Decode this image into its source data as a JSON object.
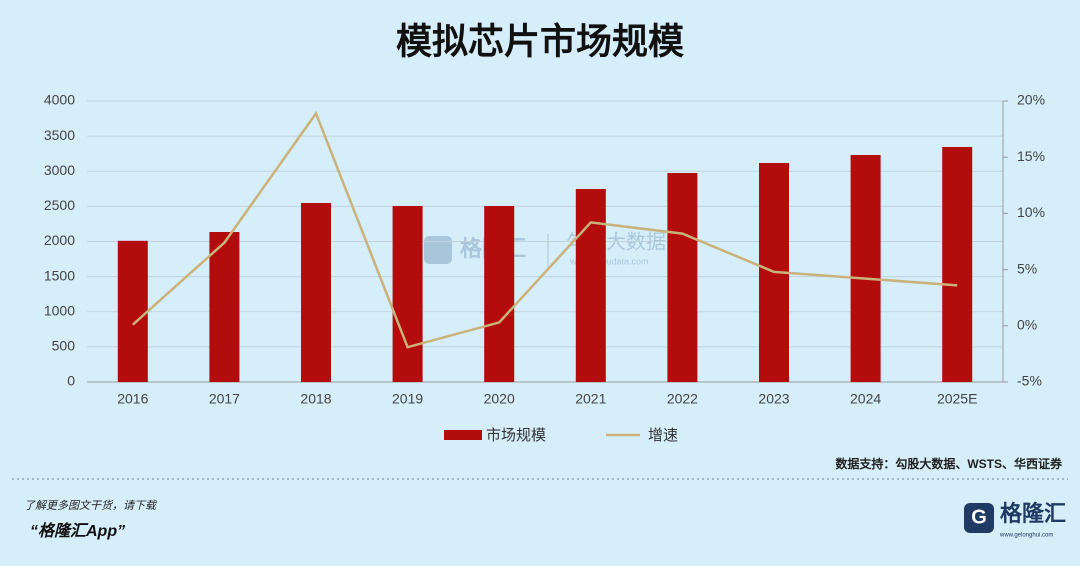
{
  "chart_data": {
    "type": "bar",
    "title": "模拟芯片市场规模",
    "categories": [
      "2016",
      "2017",
      "2018",
      "2019",
      "2020",
      "2021",
      "2022",
      "2023",
      "2024",
      "2025E"
    ],
    "series": [
      {
        "name": "市场规模",
        "type": "bar",
        "color": "#b30c0c",
        "values": [
          2010,
          2135,
          2548,
          2505,
          2505,
          2747,
          2975,
          3117,
          3231,
          3345
        ]
      },
      {
        "name": "增速",
        "type": "line",
        "axis": "y2",
        "color": "#c9b27c",
        "values": [
          0.1,
          7.4,
          18.9,
          -1.9,
          0.3,
          9.2,
          8.2,
          4.8,
          4.2,
          3.6
        ]
      }
    ],
    "ylim": [
      0,
      4000
    ],
    "yticks": [
      0,
      500,
      1000,
      1500,
      2000,
      2500,
      3000,
      3500,
      4000
    ],
    "y2lim": [
      -5,
      20
    ],
    "y2ticks": [
      {
        "value": -5,
        "label": "-5%"
      },
      {
        "value": 0,
        "label": "0%"
      },
      {
        "value": 5,
        "label": "5%"
      },
      {
        "value": 10,
        "label": "10%"
      },
      {
        "value": 15,
        "label": "15%"
      },
      {
        "value": 20,
        "label": "20%"
      }
    ],
    "grid": true,
    "legend": "bottom",
    "source": "数据支持：勾股大数据、WSTS、华西证券"
  },
  "watermark": {
    "brand": "格隆汇",
    "partner": "勾股大数据",
    "url": "www.gogudata.com"
  },
  "footer": {
    "prompt": "了解更多图文干货，请下载",
    "app": "“格隆汇App”",
    "logo": "格隆汇",
    "url": "www.gelonghui.com"
  }
}
